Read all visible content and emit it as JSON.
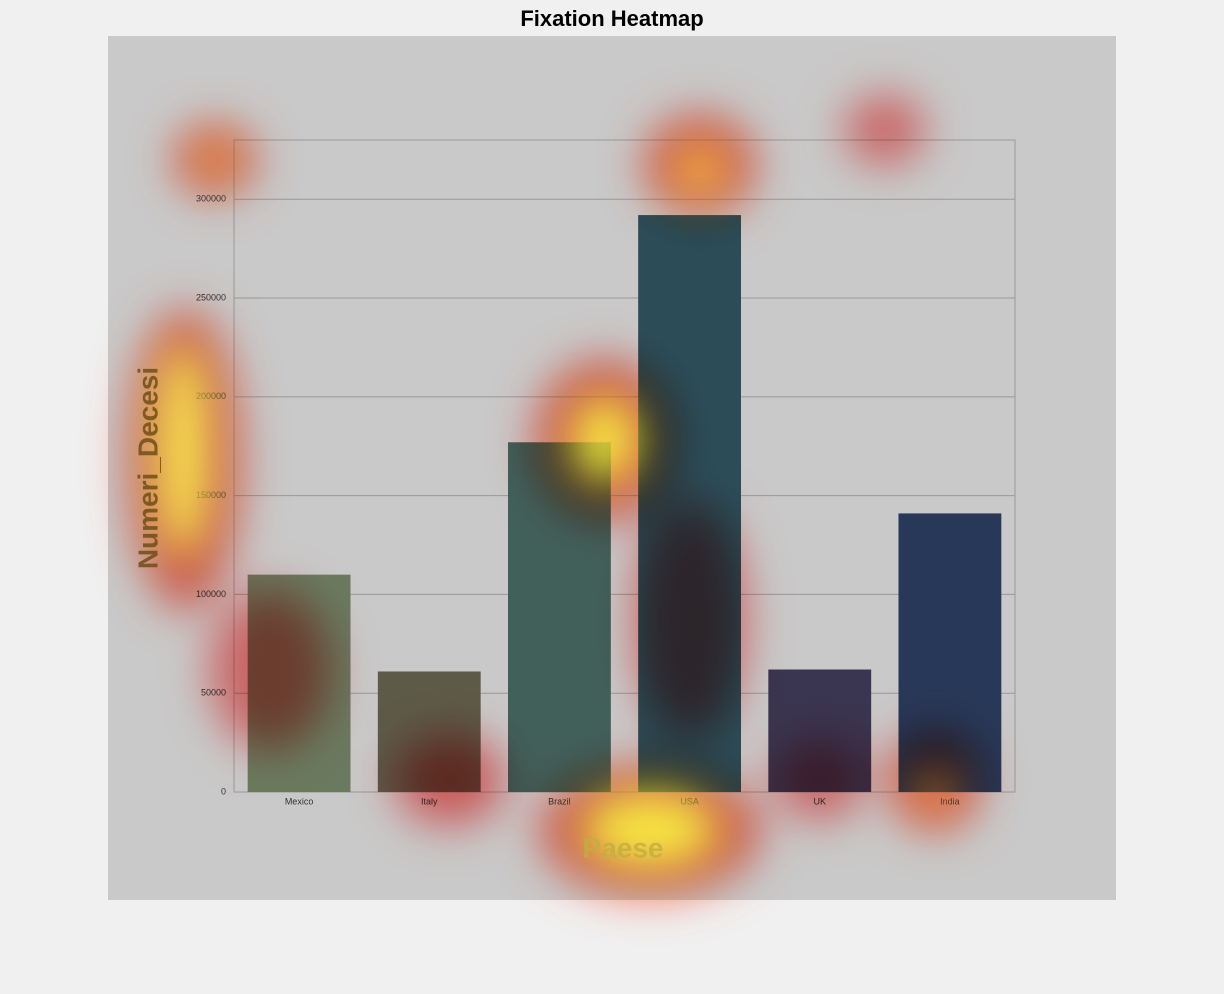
{
  "chart_data": {
    "type": "bar",
    "title": "Fixation Heatmap",
    "x_label": "Paese",
    "y_label": "Numeri_Decesi",
    "categories": [
      "Mexico",
      "Italy",
      "Brazil",
      "USA",
      "UK",
      "India"
    ],
    "values": [
      110000,
      61000,
      177000,
      292000,
      62000,
      141000
    ],
    "colors": [
      "#6a7a5e",
      "#5d5a48",
      "#42605a",
      "#2c4d58",
      "#3a3550",
      "#283858"
    ],
    "ylim": [
      0,
      330000
    ],
    "yticks": [
      0,
      50000,
      100000,
      150000,
      200000,
      250000,
      300000
    ],
    "grid": true
  }
}
